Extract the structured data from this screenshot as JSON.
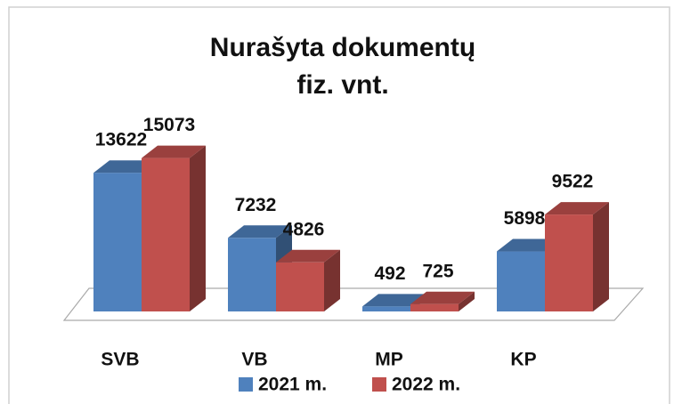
{
  "chart_data": {
    "type": "bar3d",
    "title": [
      "Nurašyta dokumentų",
      "fiz. vnt."
    ],
    "categories": [
      "SVB",
      "VB",
      "MP",
      "KP"
    ],
    "series": [
      {
        "name": "2021 m.",
        "color": "#4f81bd",
        "values": [
          13622,
          7232,
          492,
          5898
        ]
      },
      {
        "name": "2022 m.",
        "color": "#c0504d",
        "values": [
          15073,
          4826,
          725,
          9522
        ]
      }
    ],
    "ylim": [
      0,
      16000
    ],
    "legend": "bottom"
  }
}
